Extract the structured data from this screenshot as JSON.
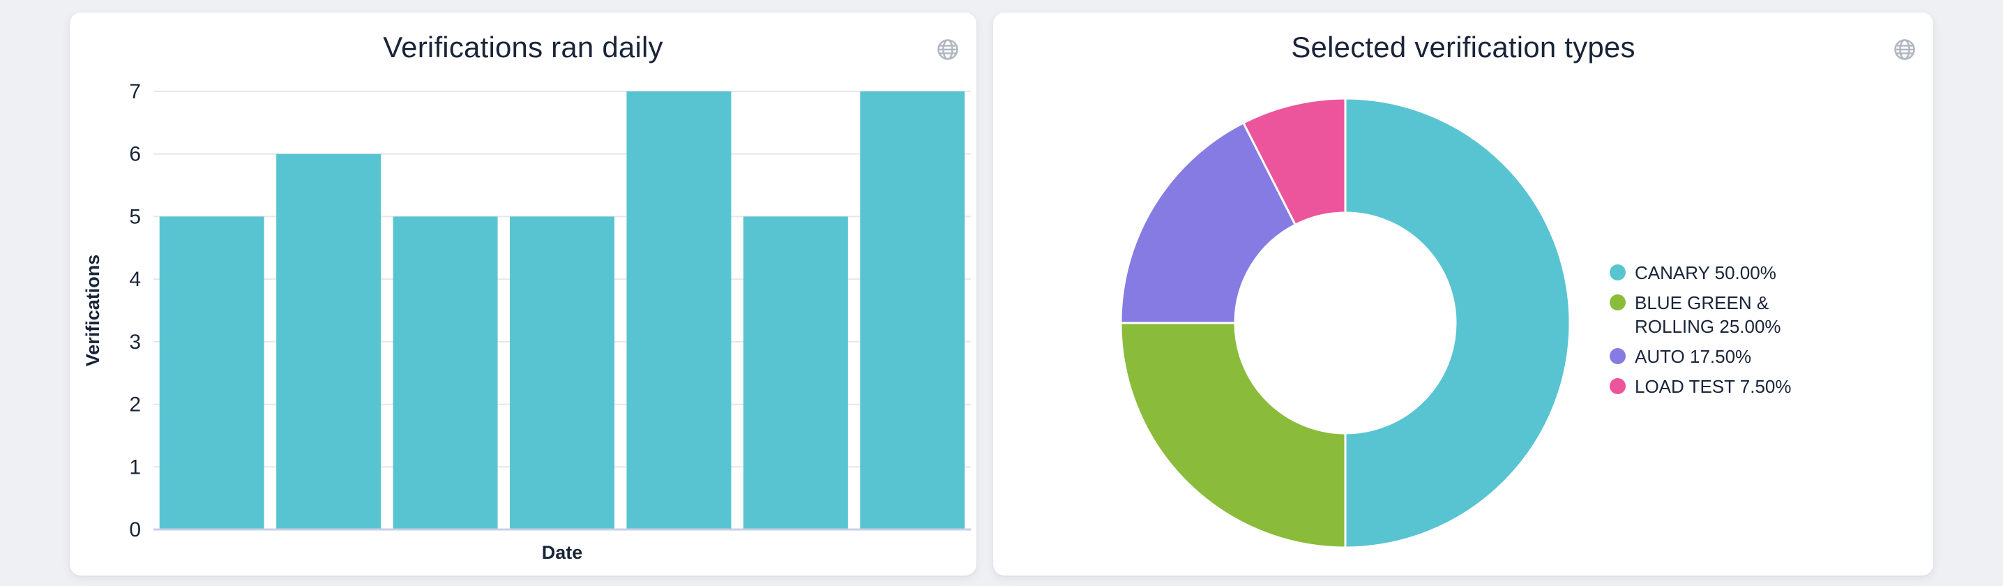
{
  "page": {
    "background": "#eef0f4",
    "card_background": "#ffffff",
    "text_color": "#1a2439"
  },
  "left_card": {
    "title": "Verifications ran daily",
    "globe_icon": "globe-icon"
  },
  "right_card": {
    "title": "Selected verification types",
    "globe_icon": "globe-icon"
  },
  "icon_colors": {
    "globe": "#b2b8c2"
  },
  "chart_data": [
    {
      "type": "bar",
      "title": "Verifications ran daily",
      "xlabel": "Date",
      "ylabel": "Verifications",
      "categories": [
        "",
        "",
        "",
        "",
        "",
        "",
        ""
      ],
      "values": [
        5,
        6,
        5,
        5,
        7,
        5,
        7
      ],
      "ylim": [
        0,
        7
      ],
      "yticks": [
        0,
        1,
        2,
        3,
        4,
        5,
        6,
        7
      ],
      "x_tick_labels_shown": false,
      "grid": true,
      "bar_color": "#59c4d1",
      "grid_color": "#e7e7ea",
      "axis_line_color": "#c9cfe6"
    },
    {
      "type": "pie",
      "subtype": "donut",
      "title": "Selected verification types",
      "start_angle": "top",
      "direction": "clockwise",
      "inner_radius_ratio": 0.49,
      "legend_position": "right",
      "slices": [
        {
          "name": "CANARY",
          "pct_label": "50.00%",
          "value": 50,
          "color": "#59c4d1"
        },
        {
          "name": "BLUE GREEN & ROLLING",
          "pct_label": "25.00%",
          "value": 25,
          "color": "#8bbb3b"
        },
        {
          "name": "AUTO",
          "pct_label": "17.50%",
          "value": 17.5,
          "color": "#867be3"
        },
        {
          "name": "LOAD TEST",
          "pct_label": "7.50%",
          "value": 7.5,
          "color": "#ec559c"
        }
      ]
    }
  ]
}
